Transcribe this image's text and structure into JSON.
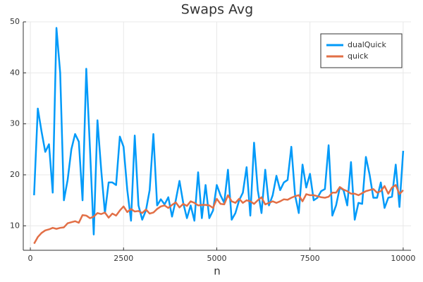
{
  "chart_data": {
    "type": "line",
    "title": "Swaps Avg",
    "x_label": "n",
    "x": [
      100,
      200,
      300,
      400,
      500,
      600,
      700,
      800,
      900,
      1000,
      1100,
      1200,
      1300,
      1400,
      1500,
      1600,
      1700,
      1800,
      1900,
      2000,
      2100,
      2200,
      2300,
      2400,
      2500,
      2600,
      2700,
      2800,
      2900,
      3000,
      3100,
      3200,
      3300,
      3400,
      3500,
      3600,
      3700,
      3800,
      3900,
      4000,
      4100,
      4200,
      4300,
      4400,
      4500,
      4600,
      4700,
      4800,
      4900,
      5000,
      5100,
      5200,
      5300,
      5400,
      5500,
      5600,
      5700,
      5800,
      5900,
      6000,
      6100,
      6200,
      6300,
      6400,
      6500,
      6600,
      6700,
      6800,
      6900,
      7000,
      7100,
      7200,
      7300,
      7400,
      7500,
      7600,
      7700,
      7800,
      7900,
      8000,
      8100,
      8200,
      8300,
      8400,
      8500,
      8600,
      8700,
      8800,
      8900,
      9000,
      9100,
      9200,
      9300,
      9400,
      9500,
      9600,
      9700,
      9800,
      9900,
      10000
    ],
    "series": [
      {
        "name": "dualQuick",
        "color": "#009af9",
        "values": [
          16,
          33,
          28.5,
          24.5,
          26,
          16.5,
          48.8,
          40,
          15,
          19,
          25,
          28,
          26.5,
          15,
          40.8,
          25,
          8.3,
          30.7,
          21,
          12.5,
          18.5,
          18.5,
          18,
          27.5,
          25.5,
          17,
          11,
          27.7,
          14,
          11.2,
          13,
          17,
          28,
          14,
          15.2,
          14.2,
          15.6,
          11.8,
          15,
          18.8,
          14.5,
          11.5,
          14,
          11,
          20.5,
          11.5,
          18,
          11.5,
          13,
          18,
          16,
          14.5,
          21,
          11.2,
          12.5,
          15,
          16.5,
          21.5,
          12,
          26.3,
          17,
          12.5,
          21,
          14,
          16,
          19.8,
          17,
          18.5,
          19,
          25.5,
          16,
          12.5,
          22,
          17.5,
          20.2,
          15,
          15.5,
          16.8,
          17.2,
          25.8,
          12,
          14,
          17.5,
          17,
          14,
          22.5,
          11.2,
          14.5,
          14.3,
          23.5,
          20,
          15.5,
          15.5,
          18.5,
          13.5,
          15.5,
          15.7,
          22,
          13.7,
          24.7
        ]
      },
      {
        "name": "quick",
        "color": "#e26f46",
        "values": [
          6.5,
          7.8,
          8.6,
          9.1,
          9.3,
          9.6,
          9.4,
          9.6,
          9.7,
          10.5,
          10.7,
          10.9,
          10.6,
          12.1,
          12.0,
          11.5,
          11.8,
          12.5,
          12.3,
          12.6,
          11.6,
          12.4,
          12,
          13,
          13.8,
          12.7,
          13.3,
          12.8,
          12.9,
          12.5,
          13.2,
          12.4,
          12.6,
          13.3,
          13.8,
          14,
          13.5,
          14.1,
          14.6,
          13.6,
          14.3,
          13.9,
          14.8,
          14.5,
          14,
          14.1,
          14.1,
          14,
          13.5,
          15.3,
          14.3,
          14.2,
          16,
          14.8,
          14.5,
          15.3,
          14.5,
          15,
          14.8,
          14.3,
          15,
          15.6,
          14.2,
          14.5,
          14.8,
          14.5,
          14.8,
          15.2,
          15.1,
          15.5,
          15.8,
          16,
          14.8,
          16.2,
          16,
          16,
          15.8,
          15.6,
          15.5,
          15.7,
          16.5,
          16.5,
          17.6,
          17.1,
          16.8,
          16.3,
          16.3,
          16,
          16.4,
          16.8,
          17,
          17.2,
          16.5,
          16.8,
          17.8,
          16.3,
          17.5,
          18,
          16.2,
          17
        ]
      }
    ],
    "xlim": [
      -190,
      10210
    ],
    "xticks": [
      0,
      2500,
      5000,
      7500,
      10000
    ],
    "ylim": [
      5.2,
      50
    ],
    "yticks": [
      10,
      20,
      30,
      40,
      50
    ],
    "grid": true,
    "legend": "top-right"
  }
}
